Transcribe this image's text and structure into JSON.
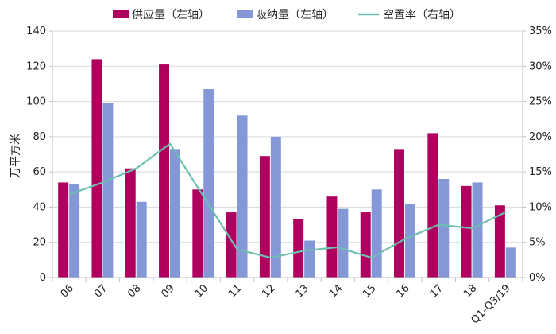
{
  "chart_data": {
    "type": "bar",
    "categories": [
      "06",
      "07",
      "08",
      "09",
      "10",
      "11",
      "12",
      "13",
      "14",
      "15",
      "16",
      "17",
      "18",
      "Q1-Q3/19"
    ],
    "series": [
      {
        "name": "供应量（左轴）",
        "kind": "bar",
        "axis": "left",
        "color": "#b0005f",
        "values": [
          54,
          124,
          62,
          121,
          50,
          37,
          69,
          33,
          46,
          37,
          73,
          82,
          52,
          41
        ]
      },
      {
        "name": "吸纳量（左轴）",
        "kind": "bar",
        "axis": "left",
        "color": "#8497d6",
        "values": [
          53,
          99,
          43,
          73,
          107,
          92,
          80,
          21,
          39,
          50,
          42,
          56,
          54,
          17
        ]
      },
      {
        "name": "空置率（右轴）",
        "kind": "line",
        "axis": "right",
        "color": "#6dbfb0",
        "values": [
          11.8,
          13.5,
          15.5,
          19.0,
          11.5,
          4.0,
          2.8,
          3.8,
          4.3,
          2.8,
          5.5,
          7.5,
          7.0,
          9.3
        ]
      }
    ],
    "ylabel": "万平方米",
    "ylim": [
      0,
      140
    ],
    "yticks": [
      0,
      20,
      40,
      60,
      80,
      100,
      120,
      140
    ],
    "y2lim": [
      0,
      35
    ],
    "y2ticks": [
      "0%",
      "5%",
      "10%",
      "15%",
      "20%",
      "25%",
      "30%",
      "35%"
    ],
    "grid": true,
    "legend_position": "top"
  }
}
